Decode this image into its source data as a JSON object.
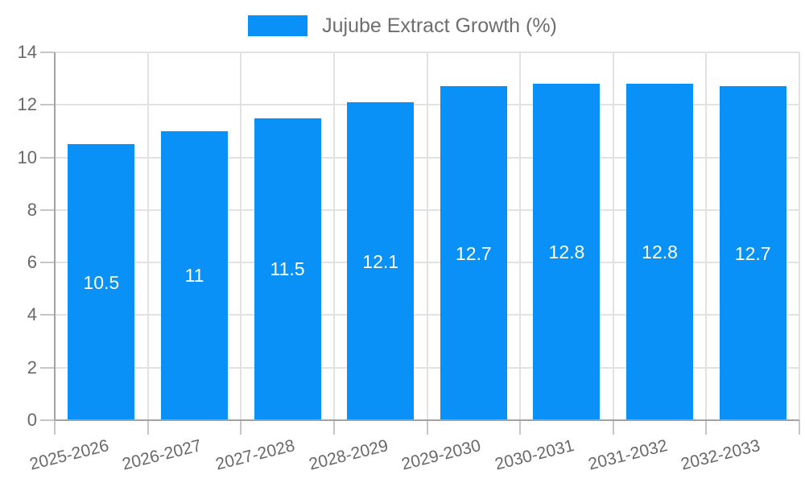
{
  "chart_data": {
    "type": "bar",
    "title": "",
    "legend_position": "top",
    "legend": [
      {
        "label": "Jujube Extract Growth (%)",
        "color": "#0991f7"
      }
    ],
    "categories": [
      "2025-2026",
      "2026-2027",
      "2027-2028",
      "2028-2029",
      "2029-2030",
      "2030-2031",
      "2031-2032",
      "2032-2033"
    ],
    "series": [
      {
        "name": "Jujube Extract Growth (%)",
        "values": [
          10.5,
          11,
          11.5,
          12.1,
          12.7,
          12.8,
          12.8,
          12.7
        ]
      }
    ],
    "bar_value_labels": [
      "10.5",
      "11",
      "11.5",
      "12.1",
      "12.7",
      "12.8",
      "12.8",
      "12.7"
    ],
    "xlabel": "",
    "ylabel": "",
    "ylim": [
      0,
      14
    ],
    "ytick_labels": [
      "0",
      "2",
      "4",
      "6",
      "8",
      "10",
      "12",
      "14"
    ],
    "ytick_values": [
      0,
      2,
      4,
      6,
      8,
      10,
      12,
      14
    ],
    "grid": true,
    "x_label_rotation_deg": -14,
    "colors": {
      "bar": "#0991f7",
      "grid": "#e2e2e2",
      "tick": "#c6c6c6",
      "axis": "#a2a2a2",
      "axis_text": "#696969",
      "legend_text": "#6e6e6e",
      "bar_label_text": "#ffffff",
      "background": "#ffffff"
    }
  }
}
